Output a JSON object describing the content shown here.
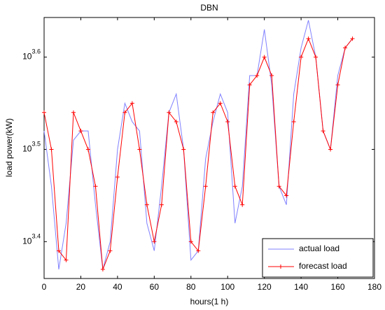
{
  "chart_data": {
    "type": "line",
    "title": "DBN",
    "x_label": "hours(1 h)",
    "y_label": "load power(kW)",
    "x": [
      0,
      4,
      8,
      12,
      16,
      20,
      24,
      28,
      32,
      36,
      40,
      44,
      48,
      52,
      56,
      60,
      64,
      68,
      72,
      76,
      80,
      84,
      88,
      92,
      96,
      100,
      104,
      108,
      112,
      116,
      120,
      124,
      128,
      132,
      136,
      140,
      144,
      148,
      152,
      156,
      160,
      164,
      168
    ],
    "series": [
      {
        "name": "actual load",
        "color": "#8080ff",
        "marker": "none",
        "values": [
          3311,
          2884,
          2344,
          2630,
          3236,
          3311,
          3311,
          2754,
          2344,
          2512,
          3162,
          3548,
          3388,
          3311,
          2630,
          2455,
          2884,
          3467,
          3631,
          3162,
          2399,
          2455,
          3090,
          3388,
          3631,
          3467,
          2630,
          2884,
          3802,
          3802,
          4266,
          3715,
          2884,
          2754,
          3631,
          4074,
          4365,
          3981,
          3311,
          3162,
          3802,
          4074,
          4169
        ]
      },
      {
        "name": "forecast load",
        "color": "#ff0000",
        "marker": "plus",
        "values": [
          3467,
          3162,
          2455,
          2399,
          3467,
          3311,
          3162,
          2884,
          2344,
          2455,
          2951,
          3467,
          3548,
          3162,
          2754,
          2512,
          2754,
          3467,
          3388,
          3162,
          2512,
          2455,
          2884,
          3467,
          3548,
          3388,
          2884,
          2754,
          3715,
          3802,
          3981,
          3802,
          2884,
          2818,
          3388,
          3981,
          4169,
          3981,
          3311,
          3162,
          3715,
          4074,
          4169
        ]
      }
    ],
    "xlim": [
      0,
      180
    ],
    "xticks": [
      0,
      20,
      40,
      60,
      80,
      100,
      120,
      140,
      160,
      180
    ],
    "ylim": [
      2291,
      4395
    ],
    "ylog": true,
    "yticks": [
      {
        "value": 2511.9,
        "label": "10^3.4"
      },
      {
        "value": 3162.3,
        "label": "10^3.5"
      },
      {
        "value": 3981.1,
        "label": "10^3.6"
      }
    ],
    "grid": false,
    "legend": "lower right"
  }
}
